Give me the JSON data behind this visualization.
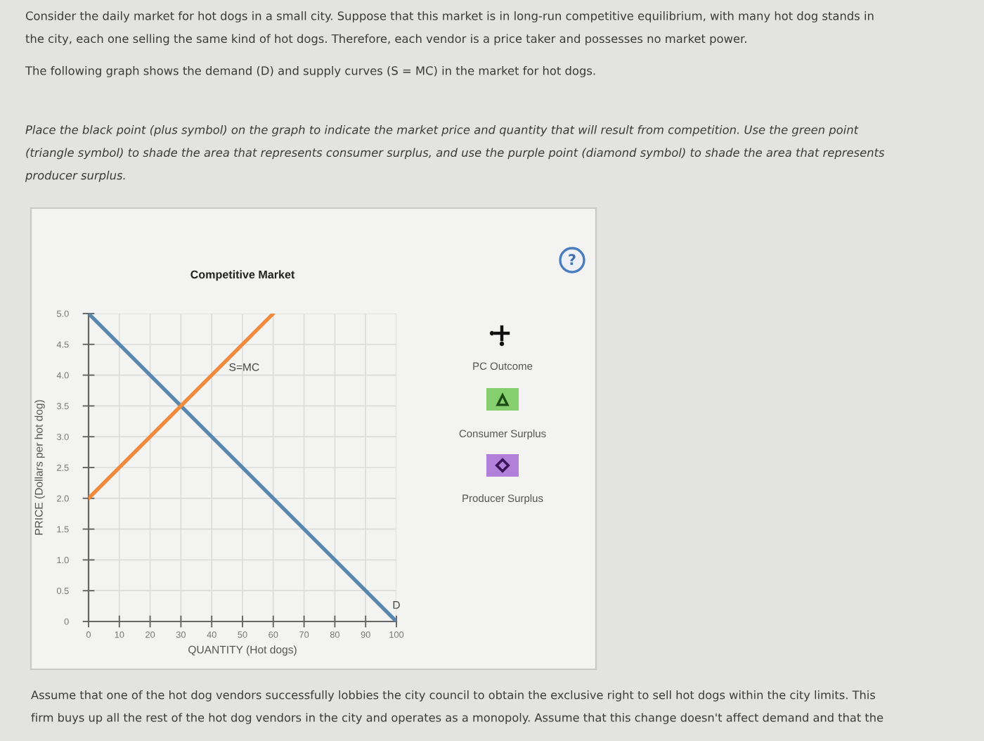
{
  "chart_data": {
    "type": "line",
    "title": "Competitive Market",
    "xlabel": "QUANTITY (Hot dogs)",
    "ylabel": "PRICE (Dollars per hot dog)",
    "xlim": [
      0,
      100
    ],
    "ylim": [
      0,
      5
    ],
    "xticks": [
      0,
      10,
      20,
      30,
      40,
      50,
      60,
      70,
      80,
      90,
      100
    ],
    "yticks": [
      0,
      0.5,
      {
        "value": 1,
        "label": "1.0"
      },
      1.5,
      {
        "value": 2,
        "label": "2.0"
      },
      2.5,
      {
        "value": 3,
        "label": "3.0"
      },
      3.5,
      {
        "value": 4,
        "label": "4.0"
      },
      4.5,
      {
        "value": 5,
        "label": "5.0"
      }
    ],
    "grid": true,
    "marker": "none",
    "line_style": "solid",
    "series": [
      {
        "name": "D",
        "color": "#5a87ad",
        "x": [
          0,
          100
        ],
        "values": [
          5,
          0
        ]
      },
      {
        "name": "S=MC",
        "color": "#f08a3c",
        "x": [
          0,
          60
        ],
        "values": [
          2,
          5
        ]
      }
    ],
    "annotations": [
      "Consider the daily market for hot dogs in a small city. Suppose that this market is in long-run competitive equilibrium, with many hot dog stands in\nthe city, each one selling the same kind of hot dogs. Therefore, each vendor is a price taker and possesses no market power.",
      "The following graph shows the demand (D) and supply curves (S = MC) in the market for hot dogs.",
      "Place the black point (plus symbol) on the graph to indicate the market price and quantity that will result from competition. Use the green point\n(triangle symbol) to shade the area that represents consumer surplus, and use the purple point (diamond symbol) to shade the area that represents\nproducer surplus.",
      "PC Outcome",
      "Consumer Surplus",
      "Producer Surplus",
      "?",
      "Assume that one of the hot dog vendors successfully lobbies the city council to obtain the exclusive right to sell hot dogs within the city limits. This\nfirm buys up all the rest of the hot dog vendors in the city and operates as a monopoly. Assume that this change doesn't affect demand and that the"
    ]
  }
}
